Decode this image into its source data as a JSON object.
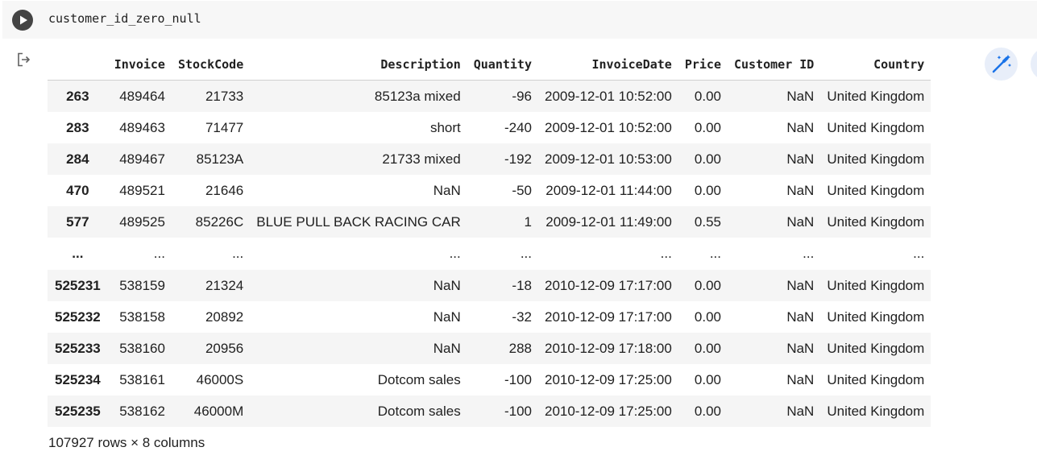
{
  "cell": {
    "code": "customer_id_zero_null"
  },
  "table": {
    "columns": [
      "",
      "Invoice",
      "StockCode",
      "Description",
      "Quantity",
      "InvoiceDate",
      "Price",
      "Customer ID",
      "Country"
    ],
    "rows": [
      [
        "263",
        "489464",
        "21733",
        "85123a mixed",
        "-96",
        "2009-12-01 10:52:00",
        "0.00",
        "NaN",
        "United Kingdom"
      ],
      [
        "283",
        "489463",
        "71477",
        "short",
        "-240",
        "2009-12-01 10:52:00",
        "0.00",
        "NaN",
        "United Kingdom"
      ],
      [
        "284",
        "489467",
        "85123A",
        "21733 mixed",
        "-192",
        "2009-12-01 10:53:00",
        "0.00",
        "NaN",
        "United Kingdom"
      ],
      [
        "470",
        "489521",
        "21646",
        "NaN",
        "-50",
        "2009-12-01 11:44:00",
        "0.00",
        "NaN",
        "United Kingdom"
      ],
      [
        "577",
        "489525",
        "85226C",
        "BLUE PULL BACK RACING CAR",
        "1",
        "2009-12-01 11:49:00",
        "0.55",
        "NaN",
        "United Kingdom"
      ],
      [
        "...",
        "...",
        "...",
        "...",
        "...",
        "...",
        "...",
        "...",
        "..."
      ],
      [
        "525231",
        "538159",
        "21324",
        "NaN",
        "-18",
        "2010-12-09 17:17:00",
        "0.00",
        "NaN",
        "United Kingdom"
      ],
      [
        "525232",
        "538158",
        "20892",
        "NaN",
        "-32",
        "2010-12-09 17:17:00",
        "0.00",
        "NaN",
        "United Kingdom"
      ],
      [
        "525233",
        "538160",
        "20956",
        "NaN",
        "288",
        "2010-12-09 17:18:00",
        "0.00",
        "NaN",
        "United Kingdom"
      ],
      [
        "525234",
        "538161",
        "46000S",
        "Dotcom sales",
        "-100",
        "2010-12-09 17:25:00",
        "0.00",
        "NaN",
        "United Kingdom"
      ],
      [
        "525235",
        "538162",
        "46000M",
        "Dotcom sales",
        "-100",
        "2010-12-09 17:25:00",
        "0.00",
        "NaN",
        "United Kingdom"
      ]
    ]
  },
  "footer": {
    "shape": "107927 rows × 8 columns"
  },
  "icons": {
    "run": "play-icon",
    "output": "output-arrow-icon",
    "suggest": "magic-wand-icon"
  },
  "colors": {
    "accent": "#1a73e8",
    "run_button": "#444444"
  }
}
